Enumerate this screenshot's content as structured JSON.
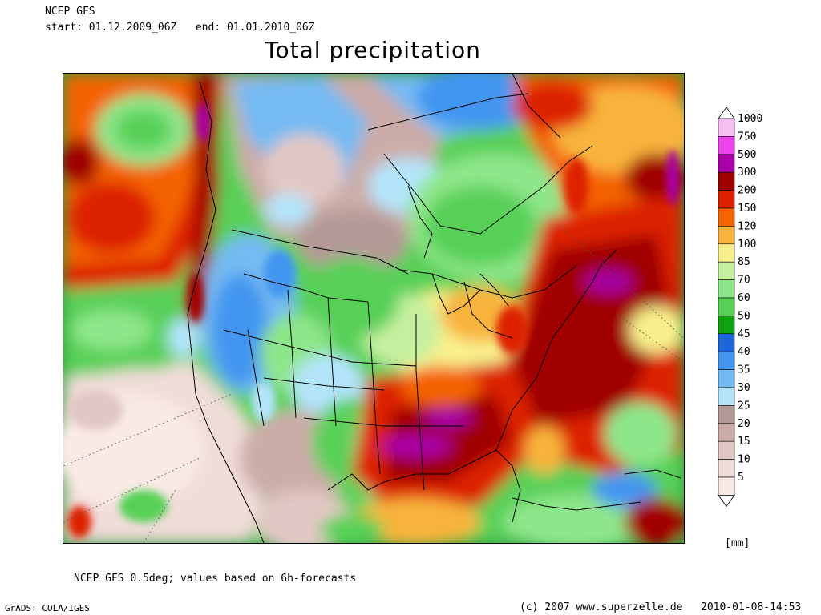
{
  "header": {
    "model": "NCEP GFS",
    "start_label": "start:",
    "start_value": "01.12.2009_06Z",
    "end_label": "end:",
    "end_value": "01.01.2010_06Z"
  },
  "title": "Total precipitation",
  "map": {
    "region": "North America"
  },
  "legend": {
    "unit": "[mm]",
    "levels": [
      "1000",
      "750",
      "500",
      "300",
      "200",
      "150",
      "120",
      "100",
      "85",
      "70",
      "60",
      "50",
      "45",
      "40",
      "35",
      "30",
      "25",
      "20",
      "15",
      "10",
      "5"
    ],
    "colors": [
      "#f5c0f2",
      "#ee44ee",
      "#a900a9",
      "#a00000",
      "#dd2000",
      "#f46400",
      "#f8b43c",
      "#f8f08c",
      "#c6f0a0",
      "#8ee68a",
      "#58d058",
      "#10a010",
      "#1c66d8",
      "#4296f0",
      "#74baf2",
      "#b4e4fa",
      "#b49a96",
      "#ccaca8",
      "#e2c8c4",
      "#f0dcd8",
      "#faeae6"
    ]
  },
  "footer": {
    "note": "NCEP GFS 0.5deg; values based on 6h-forecasts",
    "software": "GrADS: COLA/IGES",
    "copyright": "(c) 2007 www.superzelle.de",
    "timestamp": "2010-01-08-14:53"
  }
}
